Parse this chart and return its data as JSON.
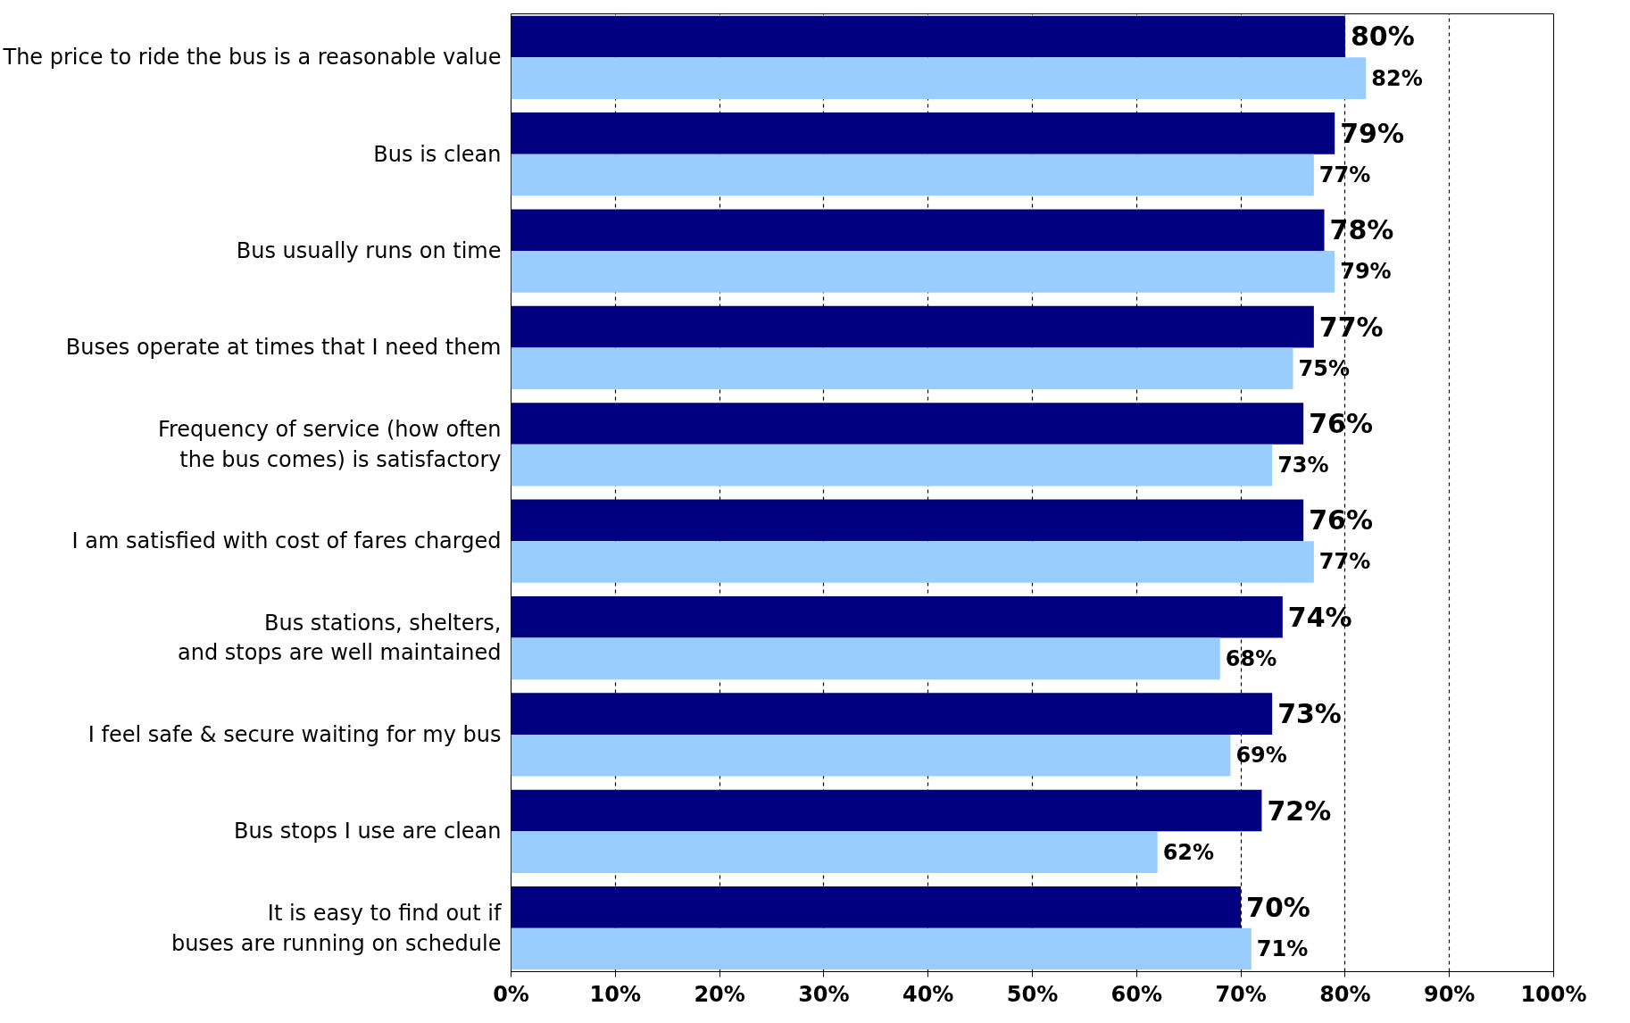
{
  "chart_data": {
    "type": "bar",
    "orientation": "horizontal",
    "categories": [
      "The price to ride the bus is a reasonable value",
      "Bus is clean",
      "Bus usually runs on time",
      "Buses operate at times that I need them",
      "Frequency of service (how often\nthe bus comes) is satisfactory",
      "I am satisfied with cost of fares charged",
      "Bus stations, shelters,\nand stops are well maintained",
      "I feel safe & secure waiting for my bus",
      "Bus stops I use are clean",
      "It is easy to find out if\nbuses are running on schedule"
    ],
    "series": [
      {
        "color": "#000080",
        "values": [
          80,
          79,
          78,
          77,
          76,
          76,
          74,
          73,
          72,
          70
        ]
      },
      {
        "color": "#99ccff",
        "values": [
          82,
          77,
          79,
          75,
          73,
          77,
          68,
          69,
          62,
          71
        ]
      }
    ],
    "value_labels": [
      [
        "80%",
        "79%",
        "78%",
        "77%",
        "76%",
        "76%",
        "74%",
        "73%",
        "72%",
        "70%"
      ],
      [
        "82%",
        "77%",
        "79%",
        "75%",
        "73%",
        "77%",
        "68%",
        "69%",
        "62%",
        "71%"
      ]
    ],
    "xlim": [
      0,
      100
    ],
    "xticks": [
      {
        "value": 0,
        "label": "0%"
      },
      {
        "value": 10,
        "label": "10%"
      },
      {
        "value": 20,
        "label": "20%"
      },
      {
        "value": 30,
        "label": "30%"
      },
      {
        "value": 40,
        "label": "40%"
      },
      {
        "value": 50,
        "label": "50%"
      },
      {
        "value": 60,
        "label": "60%"
      },
      {
        "value": 70,
        "label": "70%"
      },
      {
        "value": 80,
        "label": "80%"
      },
      {
        "value": 90,
        "label": "90%"
      },
      {
        "value": 100,
        "label": "100%"
      }
    ],
    "grid": "x"
  }
}
